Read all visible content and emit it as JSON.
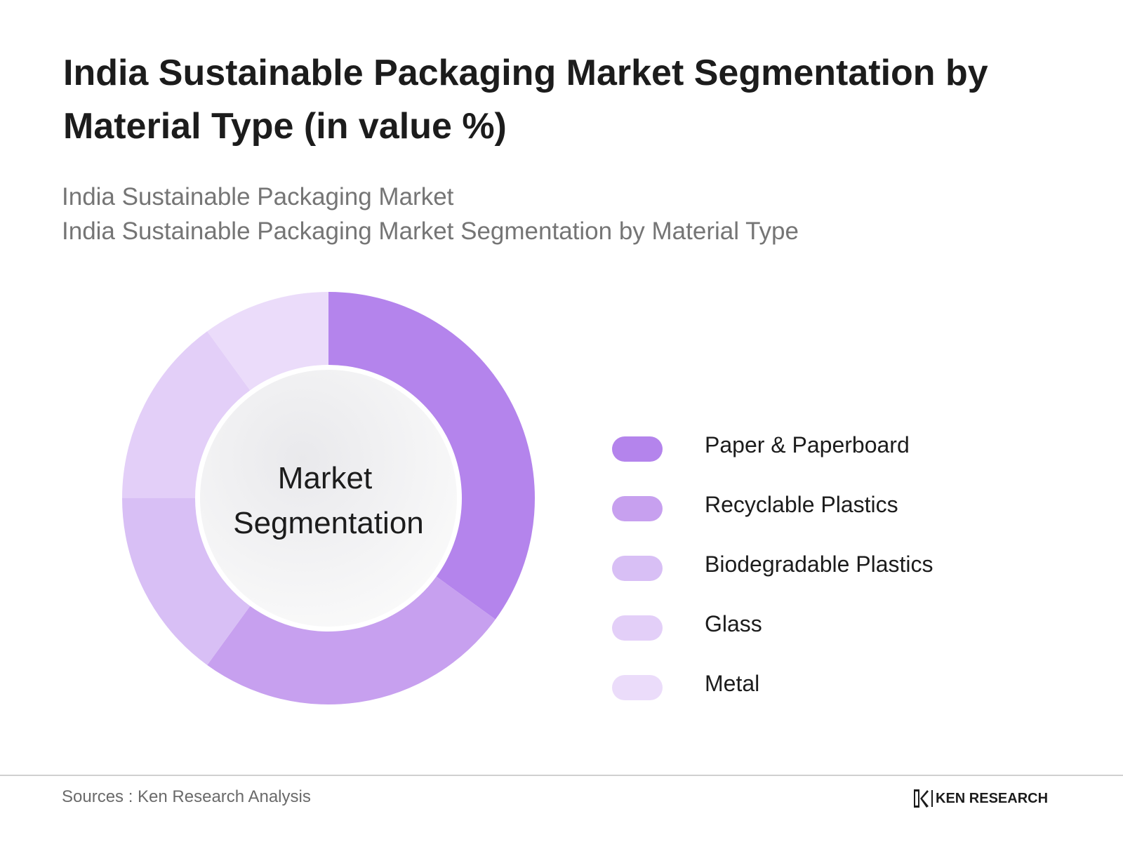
{
  "title": "India Sustainable Packaging Market Segmentation by Material Type (in value %)",
  "subtitle_line1": "India Sustainable Packaging Market",
  "subtitle_line2": "India Sustainable Packaging Market Segmentation by Material Type",
  "source": "Sources : Ken Research Analysis",
  "brand": "KEN RESEARCH",
  "chart_data": {
    "type": "pie",
    "variant": "donut",
    "center_label": [
      "Market",
      "Segmentation"
    ],
    "legend_position": "right",
    "slices": [
      {
        "label": "Paper & Paperboard",
        "value": 35,
        "color": "#b484ec"
      },
      {
        "label": "Recyclable Plastics",
        "value": 25,
        "color": "#c7a0ef"
      },
      {
        "label": "Biodegradable Plastics",
        "value": 15,
        "color": "#d8bff5"
      },
      {
        "label": "Glass",
        "value": 15,
        "color": "#e3cff8"
      },
      {
        "label": "Metal",
        "value": 10,
        "color": "#ebdcfa"
      }
    ]
  }
}
